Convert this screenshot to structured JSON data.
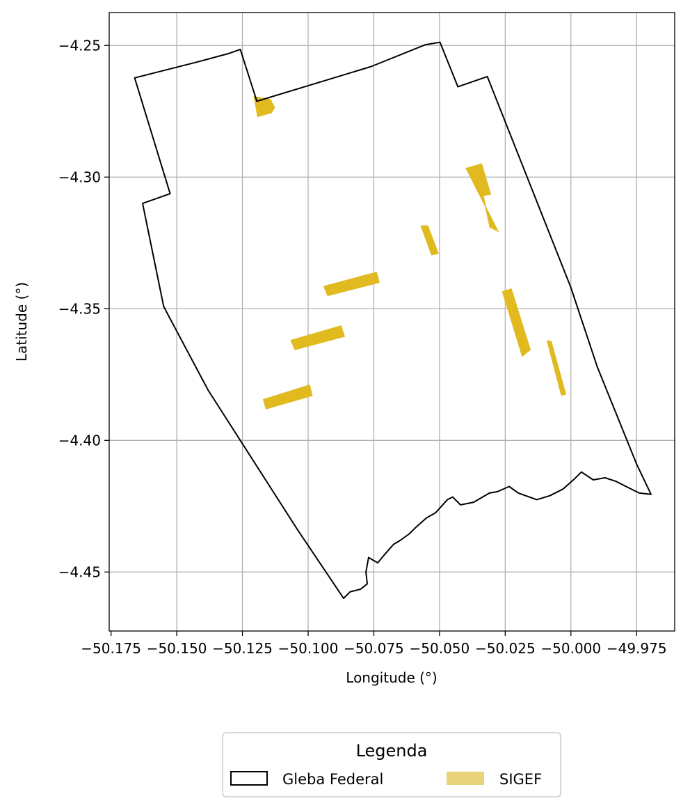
{
  "chart_data": {
    "type": "map",
    "xlabel": "Longitude (°)",
    "ylabel": "Latitude (°)",
    "xlim": [
      -50.1757,
      -49.9605
    ],
    "ylim": [
      -4.4724,
      -4.2375
    ],
    "x_ticks": [
      -50.175,
      -50.15,
      -50.125,
      -50.1,
      -50.075,
      -50.05,
      -50.025,
      -50.0,
      -49.975
    ],
    "x_tick_labels": [
      "−50.175",
      "−50.150",
      "−50.125",
      "−50.100",
      "−50.075",
      "−50.050",
      "−50.025",
      "−50.000",
      "−49.975"
    ],
    "y_ticks": [
      -4.25,
      -4.3,
      -4.35,
      -4.4,
      -4.45
    ],
    "y_tick_labels": [
      "−4.25",
      "−4.30",
      "−4.35",
      "−4.40",
      "−4.45"
    ],
    "grid": true,
    "legend": {
      "title": "Legenda",
      "placement": "bottom-center",
      "entries": [
        {
          "label": "Gleba Federal",
          "style": "outline",
          "color": "#000000"
        },
        {
          "label": "SIGEF",
          "style": "fill",
          "color": "#e8d27a"
        }
      ]
    },
    "series": [
      {
        "name": "Gleba Federal",
        "kind": "polygon-outline",
        "color": "#000000",
        "coords": [
          [
            -50.166,
            -4.2623
          ],
          [
            -50.143,
            -4.2565
          ],
          [
            -50.13,
            -4.253
          ],
          [
            -50.1258,
            -4.2515
          ],
          [
            -50.1195,
            -4.2712
          ],
          [
            -50.076,
            -4.258
          ],
          [
            -50.0553,
            -4.2497
          ],
          [
            -50.0498,
            -4.2488
          ],
          [
            -50.043,
            -4.2657
          ],
          [
            -50.0318,
            -4.2618
          ],
          [
            -50.0,
            -4.342
          ],
          [
            -49.99,
            -4.372
          ],
          [
            -49.975,
            -4.409
          ],
          [
            -49.9695,
            -4.4205
          ],
          [
            -49.974,
            -4.42
          ],
          [
            -49.979,
            -4.4175
          ],
          [
            -49.983,
            -4.4155
          ],
          [
            -49.987,
            -4.4142
          ],
          [
            -49.9915,
            -4.415
          ],
          [
            -49.996,
            -4.412
          ],
          [
            -49.9985,
            -4.4145
          ],
          [
            -50.003,
            -4.4185
          ],
          [
            -50.008,
            -4.421
          ],
          [
            -50.013,
            -4.4225
          ],
          [
            -50.02,
            -4.42
          ],
          [
            -50.0235,
            -4.4175
          ],
          [
            -50.028,
            -4.4195
          ],
          [
            -50.031,
            -4.42
          ],
          [
            -50.037,
            -4.4235
          ],
          [
            -50.042,
            -4.4245
          ],
          [
            -50.045,
            -4.4215
          ],
          [
            -50.047,
            -4.4225
          ],
          [
            -50.0515,
            -4.4275
          ],
          [
            -50.055,
            -4.4295
          ],
          [
            -50.059,
            -4.433
          ],
          [
            -50.0615,
            -4.4355
          ],
          [
            -50.065,
            -4.438
          ],
          [
            -50.0675,
            -4.4395
          ],
          [
            -50.071,
            -4.4435
          ],
          [
            -50.0735,
            -4.4465
          ],
          [
            -50.077,
            -4.4445
          ],
          [
            -50.078,
            -4.45
          ],
          [
            -50.0775,
            -4.4545
          ],
          [
            -50.08,
            -4.4565
          ],
          [
            -50.082,
            -4.457
          ],
          [
            -50.084,
            -4.4575
          ],
          [
            -50.0865,
            -4.46
          ],
          [
            -50.104,
            -4.434
          ],
          [
            -50.138,
            -4.381
          ],
          [
            -50.154,
            -4.351
          ],
          [
            -50.155,
            -4.349
          ],
          [
            -50.163,
            -4.31
          ],
          [
            -50.1525,
            -4.3063
          ],
          [
            -50.166,
            -4.2623
          ]
        ]
      },
      {
        "name": "SIGEF",
        "kind": "polygons-filled",
        "color": "#e0ba1e",
        "polygons": [
          [
            [
              -50.1205,
              -4.2695
            ],
            [
              -50.1145,
              -4.2705
            ],
            [
              -50.1128,
              -4.2735
            ],
            [
              -50.114,
              -4.2755
            ],
            [
              -50.1192,
              -4.277
            ]
          ],
          [
            [
              -50.0398,
              -4.2967
            ],
            [
              -50.034,
              -4.295
            ],
            [
              -50.0306,
              -4.3065
            ],
            [
              -50.0334,
              -4.307
            ],
            [
              -50.0308,
              -4.319
            ],
            [
              -50.0278,
              -4.3205
            ]
          ],
          [
            [
              -50.057,
              -4.3185
            ],
            [
              -50.0545,
              -4.3185
            ],
            [
              -50.0505,
              -4.329
            ],
            [
              -50.053,
              -4.3295
            ]
          ],
          [
            [
              -50.094,
              -4.3415
            ],
            [
              -50.074,
              -4.3362
            ],
            [
              -50.073,
              -4.34
            ],
            [
              -50.0925,
              -4.345
            ]
          ],
          [
            [
              -50.1065,
              -4.362
            ],
            [
              -50.0875,
              -4.3565
            ],
            [
              -50.0862,
              -4.3605
            ],
            [
              -50.105,
              -4.3655
            ]
          ],
          [
            [
              -50.117,
              -4.3845
            ],
            [
              -50.0995,
              -4.379
            ],
            [
              -50.0985,
              -4.383
            ],
            [
              -50.116,
              -4.388
            ]
          ],
          [
            [
              -50.026,
              -4.3435
            ],
            [
              -50.0227,
              -4.3425
            ],
            [
              -50.0155,
              -4.3655
            ],
            [
              -50.0185,
              -4.368
            ]
          ],
          [
            [
              -50.009,
              -4.3622
            ],
            [
              -50.0075,
              -4.3625
            ],
            [
              -50.002,
              -4.3825
            ],
            [
              -50.0036,
              -4.3828
            ]
          ]
        ]
      }
    ]
  }
}
